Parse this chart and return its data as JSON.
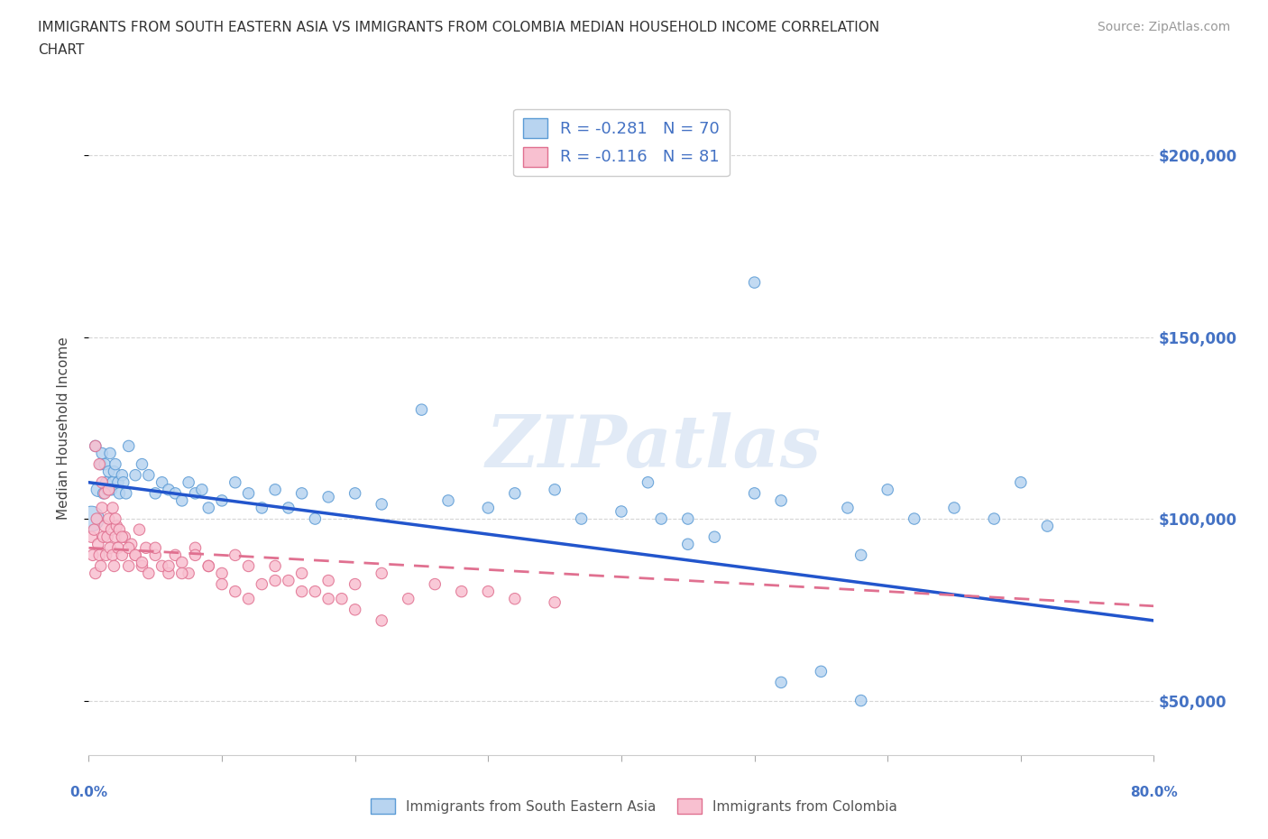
{
  "title_line1": "IMMIGRANTS FROM SOUTH EASTERN ASIA VS IMMIGRANTS FROM COLOMBIA MEDIAN HOUSEHOLD INCOME CORRELATION",
  "title_line2": "CHART",
  "source": "Source: ZipAtlas.com",
  "ylabel": "Median Household Income",
  "series": [
    {
      "name": "Immigrants from South Eastern Asia",
      "color": "#b8d4f0",
      "edge_color": "#5b9bd5",
      "R": -0.281,
      "N": 70,
      "line_style": "solid",
      "line_color": "#2255cc",
      "sizes": [
        400,
        80,
        120,
        80,
        80,
        80,
        80,
        80,
        80,
        80,
        80,
        80,
        80,
        80,
        80,
        80,
        80,
        80,
        80,
        80,
        80,
        80,
        80,
        80,
        80,
        80,
        80,
        80,
        80,
        80,
        80,
        80,
        80,
        80,
        80,
        80,
        80,
        80,
        80,
        80,
        80,
        80,
        80,
        80,
        80,
        80,
        80,
        80,
        80,
        80,
        80,
        80,
        80,
        80,
        80,
        80,
        80,
        80,
        80,
        80,
        80,
        80,
        80,
        80,
        80,
        80,
        80,
        80,
        80,
        80
      ],
      "x": [
        0.2,
        0.5,
        0.7,
        0.9,
        1.0,
        1.1,
        1.2,
        1.3,
        1.4,
        1.5,
        1.6,
        1.7,
        1.8,
        1.9,
        2.0,
        2.2,
        2.3,
        2.5,
        2.6,
        2.8,
        3.0,
        3.5,
        4.0,
        4.5,
        5.0,
        5.5,
        6.0,
        6.5,
        7.0,
        7.5,
        8.0,
        8.5,
        9.0,
        10.0,
        11.0,
        12.0,
        13.0,
        14.0,
        15.0,
        16.0,
        17.0,
        18.0,
        20.0,
        22.0,
        25.0,
        27.0,
        30.0,
        32.0,
        35.0,
        37.0,
        40.0,
        43.0,
        45.0,
        50.0,
        52.0,
        55.0,
        57.0,
        42.0,
        45.0,
        47.0,
        52.0,
        58.0,
        60.0,
        62.0,
        65.0,
        68.0,
        70.0,
        72.0,
        58.0,
        50.0
      ],
      "y": [
        100000,
        120000,
        108000,
        115000,
        118000,
        107000,
        115000,
        110000,
        108000,
        113000,
        118000,
        108000,
        110000,
        113000,
        115000,
        110000,
        107000,
        112000,
        110000,
        107000,
        120000,
        112000,
        115000,
        112000,
        107000,
        110000,
        108000,
        107000,
        105000,
        110000,
        107000,
        108000,
        103000,
        105000,
        110000,
        107000,
        103000,
        108000,
        103000,
        107000,
        100000,
        106000,
        107000,
        104000,
        130000,
        105000,
        103000,
        107000,
        108000,
        100000,
        102000,
        100000,
        93000,
        107000,
        105000,
        58000,
        103000,
        110000,
        100000,
        95000,
        55000,
        50000,
        108000,
        100000,
        103000,
        100000,
        110000,
        98000,
        90000,
        165000
      ],
      "trend_x": [
        0.0,
        80.0
      ],
      "trend_y": [
        110000,
        72000
      ]
    },
    {
      "name": "Immigrants from Colombia",
      "color": "#f8c0d0",
      "edge_color": "#e07090",
      "R": -0.116,
      "N": 81,
      "line_style": "dashed",
      "line_color": "#e07090",
      "x": [
        0.2,
        0.3,
        0.4,
        0.5,
        0.6,
        0.7,
        0.8,
        0.9,
        1.0,
        1.1,
        1.2,
        1.3,
        1.4,
        1.5,
        1.6,
        1.7,
        1.8,
        1.9,
        2.0,
        2.1,
        2.2,
        2.3,
        2.5,
        2.7,
        3.0,
        3.2,
        3.5,
        3.8,
        4.0,
        4.3,
        4.5,
        5.0,
        5.5,
        6.0,
        6.5,
        7.0,
        7.5,
        8.0,
        9.0,
        10.0,
        11.0,
        12.0,
        13.0,
        14.0,
        15.0,
        16.0,
        17.0,
        18.0,
        19.0,
        20.0,
        22.0,
        24.0,
        26.0,
        28.0,
        30.0,
        32.0,
        35.0,
        0.5,
        0.8,
        1.0,
        1.2,
        1.5,
        1.8,
        2.0,
        2.5,
        3.0,
        3.5,
        4.0,
        5.0,
        6.0,
        7.0,
        8.0,
        9.0,
        10.0,
        11.0,
        12.0,
        14.0,
        16.0,
        18.0,
        20.0,
        22.0
      ],
      "y": [
        95000,
        90000,
        97000,
        85000,
        100000,
        93000,
        90000,
        87000,
        103000,
        95000,
        98000,
        90000,
        95000,
        100000,
        92000,
        97000,
        90000,
        87000,
        95000,
        98000,
        92000,
        97000,
        90000,
        95000,
        87000,
        93000,
        90000,
        97000,
        87000,
        92000,
        85000,
        90000,
        87000,
        85000,
        90000,
        88000,
        85000,
        92000,
        87000,
        85000,
        90000,
        87000,
        82000,
        87000,
        83000,
        85000,
        80000,
        83000,
        78000,
        82000,
        85000,
        78000,
        82000,
        80000,
        80000,
        78000,
        77000,
        120000,
        115000,
        110000,
        107000,
        108000,
        103000,
        100000,
        95000,
        92000,
        90000,
        88000,
        92000,
        87000,
        85000,
        90000,
        87000,
        82000,
        80000,
        78000,
        83000,
        80000,
        78000,
        75000,
        72000
      ],
      "trend_x": [
        0.0,
        80.0
      ],
      "trend_y": [
        92000,
        76000
      ]
    }
  ],
  "xlim": [
    0.0,
    80.0
  ],
  "ylim": [
    35000,
    215000
  ],
  "yticks": [
    50000,
    100000,
    150000,
    200000
  ],
  "ytick_labels": [
    "$50,000",
    "$100,000",
    "$150,000",
    "$200,000"
  ],
  "xtick_positions": [
    0.0,
    10.0,
    20.0,
    30.0,
    40.0,
    50.0,
    60.0,
    70.0,
    80.0
  ],
  "watermark": "ZIPatlas",
  "background_color": "#ffffff",
  "grid_color": "#cccccc"
}
